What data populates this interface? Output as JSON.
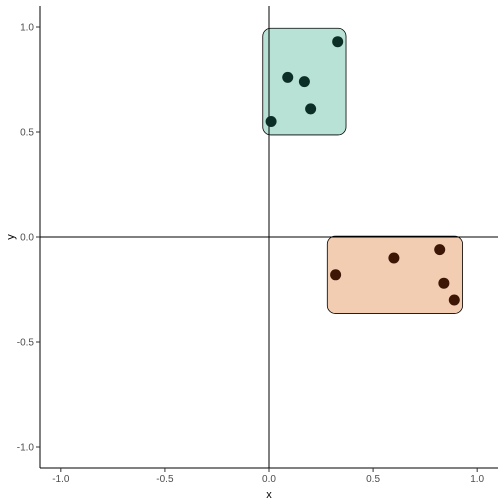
{
  "chart_data": {
    "type": "scatter",
    "title": "",
    "xlabel": "x",
    "ylabel": "y",
    "xlim": [
      -1.1,
      1.1
    ],
    "ylim": [
      -1.1,
      1.1
    ],
    "x_ticks": [
      -1.0,
      -0.5,
      0.0,
      0.5,
      1.0
    ],
    "x_tick_labels": [
      "-1.0",
      "-0.5",
      "0.0",
      "0.5",
      "1.0"
    ],
    "y_ticks": [
      -1.0,
      -0.5,
      0.0,
      0.5,
      1.0
    ],
    "y_tick_labels": [
      "-1.0",
      "-0.5",
      "0.0",
      "0.5",
      "1.0"
    ],
    "grid": false,
    "reference_lines": {
      "x": 0,
      "y": 0
    },
    "series": [
      {
        "color": "#0b2e26",
        "fill": "#b9e2d6",
        "points": [
          {
            "x": 0.33,
            "y": 0.93
          },
          {
            "x": 0.09,
            "y": 0.76
          },
          {
            "x": 0.17,
            "y": 0.74
          },
          {
            "x": 0.2,
            "y": 0.61
          },
          {
            "x": 0.01,
            "y": 0.55
          }
        ]
      },
      {
        "color": "#3d1606",
        "fill": "#f3cdb1",
        "points": [
          {
            "x": 0.82,
            "y": -0.06
          },
          {
            "x": 0.6,
            "y": -0.1
          },
          {
            "x": 0.32,
            "y": -0.18
          },
          {
            "x": 0.84,
            "y": -0.22
          },
          {
            "x": 0.89,
            "y": -0.3
          }
        ]
      }
    ]
  }
}
